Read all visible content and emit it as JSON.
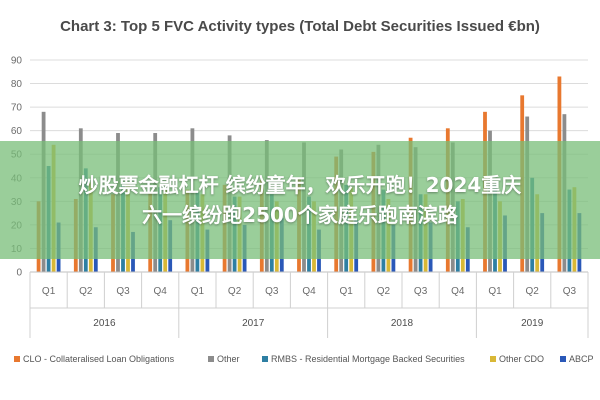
{
  "chart_data": {
    "type": "bar",
    "title": "Chart 3: Top 5 FVC Activity types (Total Debt Securities Issued €bn)",
    "ylim": [
      0,
      90
    ],
    "yticks": [
      0,
      10,
      20,
      30,
      40,
      50,
      60,
      70,
      80,
      90
    ],
    "categories": [
      "Q1",
      "Q2",
      "Q3",
      "Q4",
      "Q1",
      "Q2",
      "Q3",
      "Q4",
      "Q1",
      "Q2",
      "Q3",
      "Q4",
      "Q1",
      "Q2",
      "Q3"
    ],
    "groups": [
      {
        "label": "2016",
        "count": 4
      },
      {
        "label": "2017",
        "count": 4
      },
      {
        "label": "2018",
        "count": 4
      },
      {
        "label": "2019",
        "count": 3
      }
    ],
    "series": [
      {
        "name": "CLO - Collateralised Loan Obligations",
        "color": "#e8782f",
        "values": [
          30,
          31,
          33,
          34,
          35,
          37,
          39,
          40,
          49,
          51,
          57,
          61,
          68,
          75,
          83
        ]
      },
      {
        "name": "Other",
        "color": "#8c8c8c",
        "values": [
          68,
          61,
          59,
          59,
          61,
          58,
          56,
          55,
          52,
          54,
          53,
          55,
          60,
          66,
          67
        ]
      },
      {
        "name": "RMBS - Residential Mortgage Backed Securities",
        "color": "#2e7fa3",
        "values": [
          45,
          44,
          37,
          36,
          34,
          32,
          33,
          32,
          37,
          35,
          33,
          30,
          37,
          40,
          35
        ]
      },
      {
        "name": "Other CDO",
        "color": "#d9b836",
        "values": [
          54,
          38,
          38,
          35,
          33,
          32,
          30,
          30,
          36,
          31,
          33,
          31,
          30,
          33,
          36
        ]
      },
      {
        "name": "ABCP",
        "color": "#2a58b8",
        "values": [
          21,
          19,
          17,
          22,
          18,
          20,
          23,
          18,
          22,
          20,
          21,
          19,
          24,
          25,
          25
        ]
      }
    ],
    "grid": true,
    "legend": "bottom"
  },
  "overlay": {
    "line1": "炒股票金融杠杆 缤纷童年，欢乐开跑！2024重庆",
    "line2": "六一缤纷跑2500个家庭乐跑南滨路"
  }
}
